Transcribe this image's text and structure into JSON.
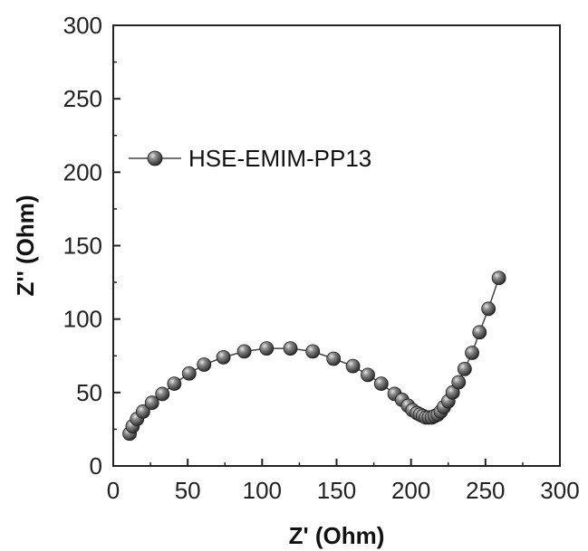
{
  "chart_data": {
    "type": "scatter",
    "xlabel": "Z' (Ohm)",
    "ylabel": "Z'' (Ohm)",
    "xlim": [
      0,
      300
    ],
    "ylim": [
      0,
      300
    ],
    "x_ticks": [
      0,
      50,
      100,
      150,
      200,
      250,
      300
    ],
    "y_ticks": [
      0,
      50,
      100,
      150,
      200,
      250,
      300
    ],
    "grid": false,
    "legend_position": "upper-left",
    "series": [
      {
        "name": "HSE-EMIM-PP13",
        "marker": "sphere",
        "line": true,
        "color": "#555555",
        "x": [
          11,
          13,
          16,
          20,
          26,
          33,
          41,
          51,
          61,
          74,
          88,
          103,
          119,
          134,
          148,
          161,
          171,
          180,
          189,
          194,
          198,
          201,
          204,
          206,
          208,
          210,
          212,
          214,
          216,
          218,
          220,
          222,
          225,
          228,
          232,
          236,
          241,
          246,
          252,
          259
        ],
        "y": [
          22,
          27,
          32,
          37,
          43,
          49,
          56,
          63,
          69,
          74,
          78,
          80,
          80,
          78,
          73,
          68,
          62,
          56,
          49,
          45,
          41,
          38,
          36,
          35,
          34,
          33,
          33,
          33,
          34,
          35,
          37,
          40,
          44,
          50,
          57,
          66,
          77,
          91,
          107,
          128
        ]
      }
    ]
  }
}
